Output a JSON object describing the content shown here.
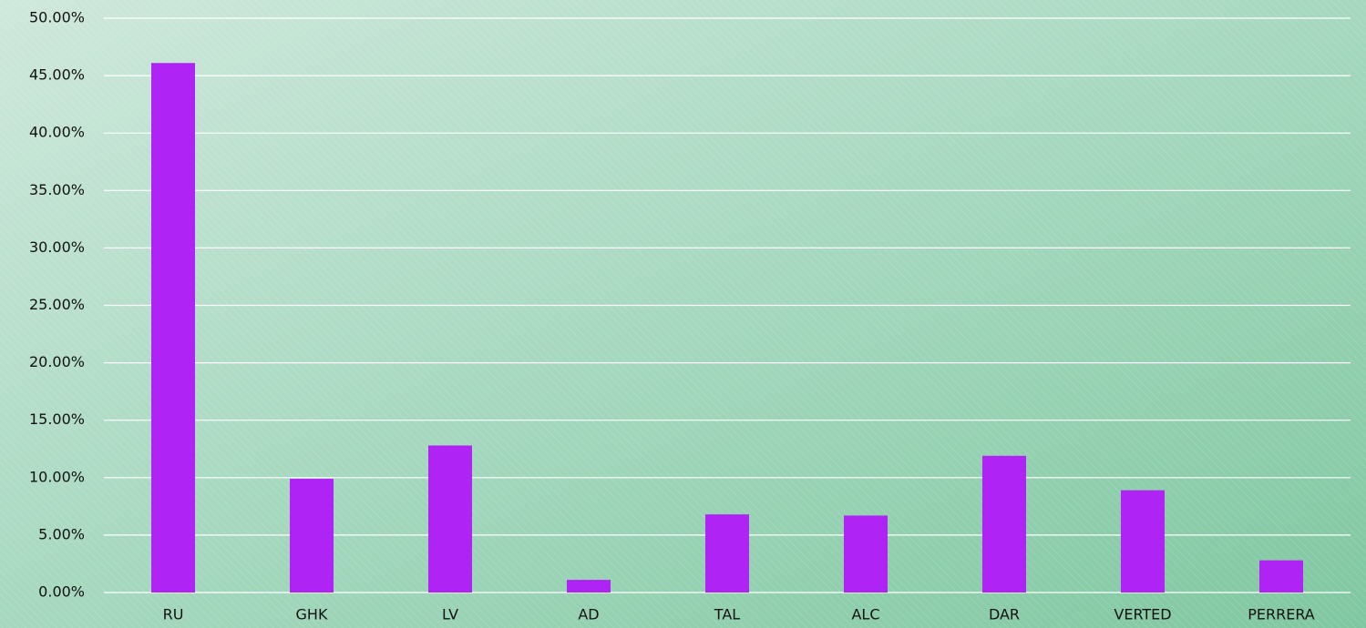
{
  "chart_data": {
    "type": "bar",
    "categories": [
      "RU",
      "GHK",
      "LV",
      "AD",
      "TAL",
      "ALC",
      "DAR",
      "VERTED",
      "PERRERA"
    ],
    "values": [
      46.1,
      9.9,
      12.8,
      1.1,
      6.8,
      6.7,
      11.9,
      8.9,
      2.8
    ],
    "color": "#b023f5",
    "ylim": [
      0,
      50
    ],
    "yticks": [
      {
        "value": 0,
        "label": "0.00%"
      },
      {
        "value": 5,
        "label": "5.00%"
      },
      {
        "value": 10,
        "label": "10.00%"
      },
      {
        "value": 15,
        "label": "15.00%"
      },
      {
        "value": 20,
        "label": "20.00%"
      },
      {
        "value": 25,
        "label": "25.00%"
      },
      {
        "value": 30,
        "label": "30.00%"
      },
      {
        "value": 35,
        "label": "35.00%"
      },
      {
        "value": 40,
        "label": "40.00%"
      },
      {
        "value": 45,
        "label": "45.00%"
      },
      {
        "value": 50,
        "label": "50.00%"
      }
    ],
    "grid": true
  }
}
